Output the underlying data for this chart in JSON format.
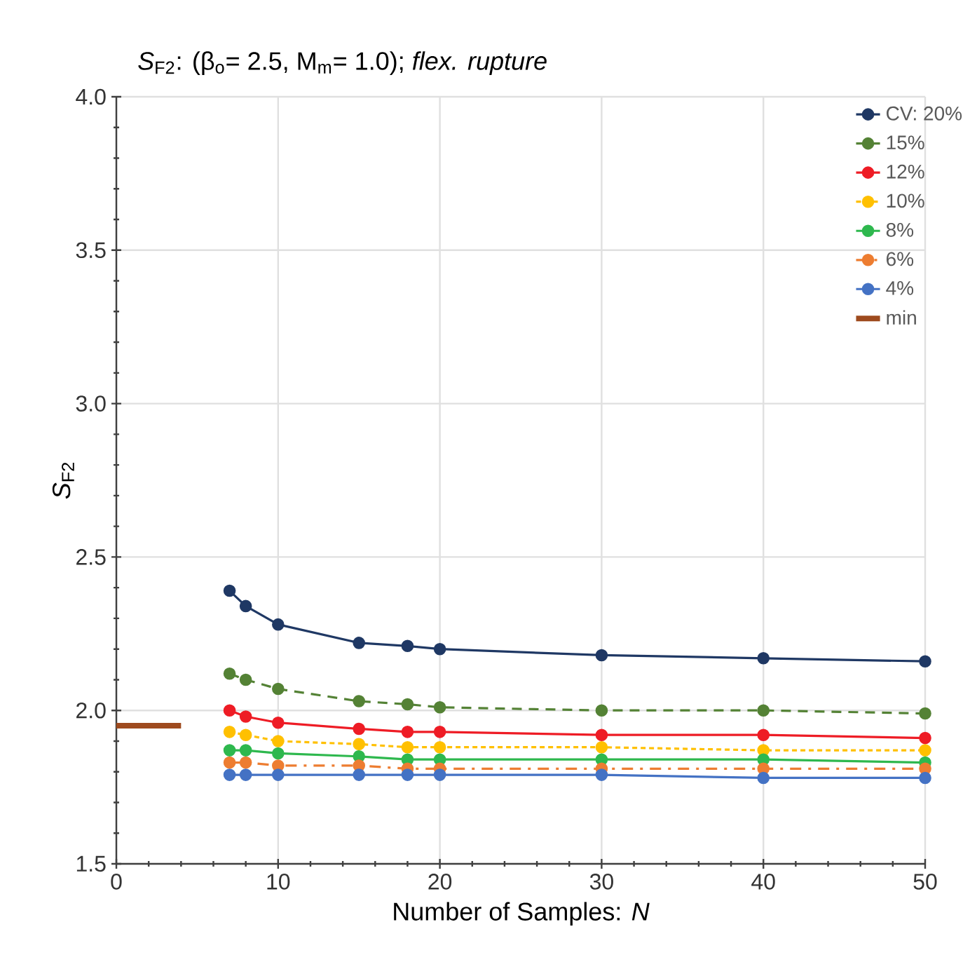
{
  "chart_data": {
    "type": "line",
    "title": "*S*$_{F2}$: (β$_{o}$= 2.5, M$_{m}$= 1.0); *flex. rupture*",
    "xlabel": "Number of Samples: *N*",
    "ylabel": "*S*$_{F2}$",
    "xlim": [
      0,
      50
    ],
    "ylim": [
      1.5,
      4.0
    ],
    "xticks": [
      0,
      10,
      20,
      30,
      40,
      50
    ],
    "yticks": [
      1.5,
      {
        "value": 2,
        "label": "2.0"
      },
      2.5,
      {
        "value": 3,
        "label": "3.0"
      },
      3.5,
      {
        "value": 4,
        "label": "4.0"
      }
    ],
    "grid": true,
    "legend": "top right",
    "marker": "circle",
    "series": [
      {
        "name": "CV: 20%",
        "color": "#1f3864",
        "line_style": "solid",
        "x": [
          7,
          8,
          10,
          15,
          18,
          20,
          30,
          40,
          50
        ],
        "values": [
          2.39,
          2.34,
          2.28,
          2.22,
          2.21,
          2.2,
          2.18,
          2.17,
          2.16
        ]
      },
      {
        "name": "15%",
        "color": "#548235",
        "line_style": "dashed",
        "x": [
          7,
          8,
          10,
          15,
          18,
          20,
          30,
          40,
          50
        ],
        "values": [
          2.12,
          2.1,
          2.07,
          2.03,
          2.02,
          2.01,
          2.0,
          2.0,
          1.99
        ]
      },
      {
        "name": "12%",
        "color": "#ee1c25",
        "line_style": "solid",
        "x": [
          7,
          8,
          10,
          15,
          18,
          20,
          30,
          40,
          50
        ],
        "values": [
          2.0,
          1.98,
          1.96,
          1.94,
          1.93,
          1.93,
          1.92,
          1.92,
          1.91
        ]
      },
      {
        "name": "10%",
        "color": "#ffc000",
        "line_style": "dotted",
        "x": [
          7,
          8,
          10,
          15,
          18,
          20,
          30,
          40,
          50
        ],
        "values": [
          1.93,
          1.92,
          1.9,
          1.89,
          1.88,
          1.88,
          1.88,
          1.87,
          1.87
        ]
      },
      {
        "name": "8%",
        "color": "#2eb84e",
        "line_style": "solid",
        "x": [
          7,
          8,
          10,
          15,
          18,
          20,
          30,
          40,
          50
        ],
        "values": [
          1.87,
          1.87,
          1.86,
          1.85,
          1.84,
          1.84,
          1.84,
          1.84,
          1.83
        ]
      },
      {
        "name": "6%",
        "color": "#ed7d31",
        "line_style": "dashdot",
        "x": [
          7,
          8,
          10,
          15,
          18,
          20,
          30,
          40,
          50
        ],
        "values": [
          1.83,
          1.83,
          1.82,
          1.82,
          1.81,
          1.81,
          1.81,
          1.81,
          1.81
        ]
      },
      {
        "name": "4%",
        "color": "#4472c4",
        "line_style": "solid",
        "x": [
          7,
          8,
          10,
          15,
          18,
          20,
          30,
          40,
          50
        ],
        "values": [
          1.79,
          1.79,
          1.79,
          1.79,
          1.79,
          1.79,
          1.79,
          1.78,
          1.78
        ]
      },
      {
        "name": "min",
        "color": "#9e4a1e",
        "line_style": "solid",
        "marker": "none",
        "x": [
          0,
          4
        ],
        "values": [
          1.95,
          1.95
        ]
      }
    ]
  }
}
